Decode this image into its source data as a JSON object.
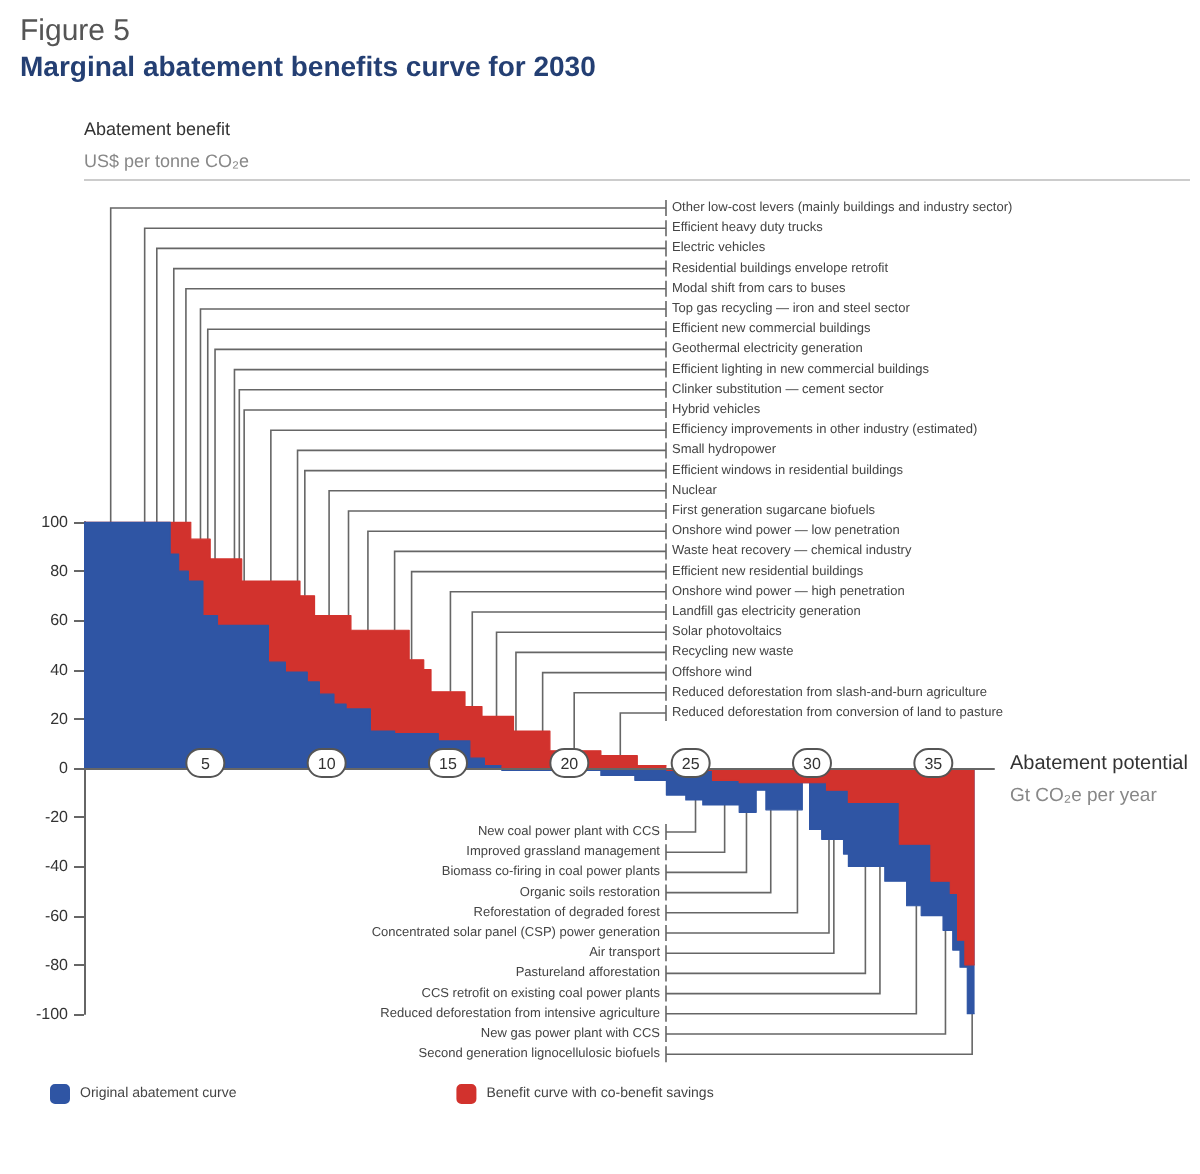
{
  "chart_data": {
    "type": "area",
    "subtitle": "Figure 5",
    "title": "Marginal abatement benefits curve for 2030",
    "xlabel": "Abatement potential\nGt CO₂e per year",
    "xlim": [
      0,
      37.5
    ],
    "xticks": [
      5,
      10,
      15,
      20,
      25,
      30,
      35
    ],
    "ylim": [
      -100,
      100
    ],
    "yticks": [
      -100,
      -80,
      -60,
      -40,
      -20,
      0,
      20,
      40,
      60,
      80,
      100
    ],
    "legend": "bottom left",
    "series": [
      {
        "name": "Benefit curve with co-benefit savings",
        "color": "#d2322d",
        "x": [
          0,
          4.4,
          4.4,
          5.2,
          5.2,
          6.5,
          6.5,
          8.9,
          8.9,
          9.5,
          9.5,
          11.0,
          11.0,
          13.4,
          13.4,
          14.0,
          14.0,
          14.3,
          14.3,
          15.7,
          15.7,
          16.4,
          16.4,
          17.7,
          17.7,
          19.2,
          19.2,
          21.3,
          21.3,
          22.8,
          22.8,
          24.0,
          24.0,
          25.9,
          25.9,
          27.0,
          27.0,
          30.6,
          30.6,
          31.5,
          31.5,
          33.6,
          33.6,
          34.9,
          34.9,
          35.7,
          35.7,
          36.0,
          36.0,
          36.3,
          36.3,
          36.7
        ],
        "values": [
          100,
          100,
          93,
          93,
          85,
          85,
          76,
          76,
          70,
          70,
          62,
          62,
          56,
          56,
          44,
          44,
          40,
          40,
          31,
          31,
          25,
          25,
          21,
          21,
          15,
          15,
          7,
          7,
          5,
          5,
          1,
          1,
          -1,
          -1,
          -5,
          -5,
          -6,
          -6,
          -9,
          -9,
          -14,
          -14,
          -31,
          -31,
          -46,
          -46,
          -51,
          -51,
          -70,
          -70,
          -80,
          -80
        ]
      },
      {
        "name": "Original abatement curve",
        "color": "#2f55a4",
        "x": [
          0,
          3.55,
          3.55,
          3.9,
          3.9,
          4.3,
          4.3,
          4.9,
          4.9,
          5.5,
          5.5,
          7.6,
          7.6,
          8.3,
          8.3,
          9.2,
          9.2,
          9.7,
          9.7,
          10.3,
          10.3,
          10.8,
          10.8,
          11.8,
          11.8,
          12.8,
          12.8,
          14.6,
          14.6,
          15.9,
          15.9,
          16.5,
          16.5,
          17.2,
          17.2,
          21.3,
          21.3,
          22.7,
          22.7,
          24.0,
          24.0,
          24.8,
          24.8,
          25.5,
          25.5,
          27.0,
          27.0,
          27.7,
          27.7,
          28.1,
          28.1,
          29.6,
          29.6,
          29.9,
          29.9,
          30.4,
          30.4,
          31.3,
          31.3,
          31.5,
          31.5,
          33.0,
          33.0,
          33.9,
          33.9,
          34.5,
          34.5,
          35.4,
          35.4,
          35.8,
          35.8,
          36.1,
          36.1,
          36.4,
          36.4,
          36.7
        ],
        "values": [
          100,
          100,
          87,
          87,
          80,
          80,
          76,
          76,
          62,
          62,
          58,
          58,
          43,
          43,
          39,
          39,
          35,
          35,
          30,
          30,
          26,
          26,
          24,
          24,
          15,
          15,
          14,
          14,
          11,
          11,
          4,
          4,
          1,
          1,
          -1,
          -1,
          -3,
          -3,
          -5,
          -5,
          -11,
          -11,
          -13,
          -13,
          -15,
          -15,
          -18,
          -18,
          -9,
          -9,
          -17,
          -17,
          -6,
          -6,
          -25,
          -25,
          -29,
          -29,
          -35,
          -35,
          -40,
          -40,
          -46,
          -46,
          -56,
          -56,
          -60,
          -60,
          -66,
          -66,
          -74,
          -74,
          -81,
          -81,
          -100,
          -100
        ]
      }
    ],
    "annotations": [
      "Abatement benefit",
      "US$ per tonne CO₂e",
      {
        "text": "Other low-cost levers (mainly buildings and industry sector)",
        "x": 1.1,
        "y": 100
      },
      {
        "text": "Efficient heavy duty trucks",
        "x": 2.5,
        "y": 100
      },
      {
        "text": "Electric vehicles",
        "x": 3.0,
        "y": 100
      },
      {
        "text": "Residential buildings envelope retrofit",
        "x": 3.7,
        "y": 100
      },
      {
        "text": "Modal shift from cars to buses",
        "x": 4.2,
        "y": 100
      },
      {
        "text": "Top gas recycling — iron and steel sector",
        "x": 4.8,
        "y": 93
      },
      {
        "text": "Efficient new commercial buildings",
        "x": 5.1,
        "y": 93
      },
      {
        "text": "Geothermal electricity generation",
        "x": 5.4,
        "y": 85
      },
      {
        "text": "Efficient lighting in new commercial buildings",
        "x": 6.2,
        "y": 85
      },
      {
        "text": "Clinker substitution — cement sector",
        "x": 6.4,
        "y": 85
      },
      {
        "text": "Hybrid vehicles",
        "x": 6.6,
        "y": 76
      },
      {
        "text": "Efficiency improvements in other industry (estimated)",
        "x": 7.7,
        "y": 76
      },
      {
        "text": "Small hydropower",
        "x": 8.8,
        "y": 76
      },
      {
        "text": "Efficient windows in residential buildings",
        "x": 9.1,
        "y": 70
      },
      {
        "text": "Nuclear",
        "x": 10.1,
        "y": 62
      },
      {
        "text": "First generation sugarcane biofuels",
        "x": 10.9,
        "y": 62
      },
      {
        "text": "Onshore wind power — low penetration",
        "x": 11.7,
        "y": 56
      },
      {
        "text": "Waste heat recovery — chemical industry",
        "x": 12.8,
        "y": 56
      },
      {
        "text": "Efficient new residential buildings",
        "x": 13.5,
        "y": 44
      },
      {
        "text": "Onshore wind power — high penetration",
        "x": 15.1,
        "y": 31
      },
      {
        "text": "Landfill gas electricity generation",
        "x": 16.0,
        "y": 25
      },
      {
        "text": "Solar photovoltaics",
        "x": 17.0,
        "y": 21
      },
      {
        "text": "Recycling new waste",
        "x": 17.8,
        "y": 15
      },
      {
        "text": "Offshore wind",
        "x": 18.9,
        "y": 15
      },
      {
        "text": "Reduced deforestation from slash-and-burn agriculture",
        "x": 20.2,
        "y": 7
      },
      {
        "text": "Reduced deforestation from conversion of land to pasture",
        "x": 22.1,
        "y": 5
      },
      {
        "text": "New coal power plant with CCS",
        "x": 25.2,
        "y": -13
      },
      {
        "text": "Improved grassland management",
        "x": 26.4,
        "y": -15
      },
      {
        "text": "Biomass co-firing in coal power plants",
        "x": 27.3,
        "y": -18
      },
      {
        "text": "Organic soils restoration",
        "x": 28.3,
        "y": -17
      },
      {
        "text": "Reforestation of degraded forest",
        "x": 29.4,
        "y": -17
      },
      {
        "text": "Concentrated solar panel (CSP) power generation",
        "x": 30.7,
        "y": -29
      },
      {
        "text": "Air transport",
        "x": 30.9,
        "y": -29
      },
      {
        "text": "Pastureland afforestation",
        "x": 32.2,
        "y": -40
      },
      {
        "text": "CCS retrofit on existing coal power plants",
        "x": 32.8,
        "y": -40
      },
      {
        "text": "Reduced deforestation from intensive agriculture",
        "x": 34.3,
        "y": -56
      },
      {
        "text": "New gas power plant with CCS",
        "x": 35.5,
        "y": -66
      },
      {
        "text": "Second generation lignocellulosic biofuels",
        "x": 36.6,
        "y": -100
      }
    ]
  }
}
